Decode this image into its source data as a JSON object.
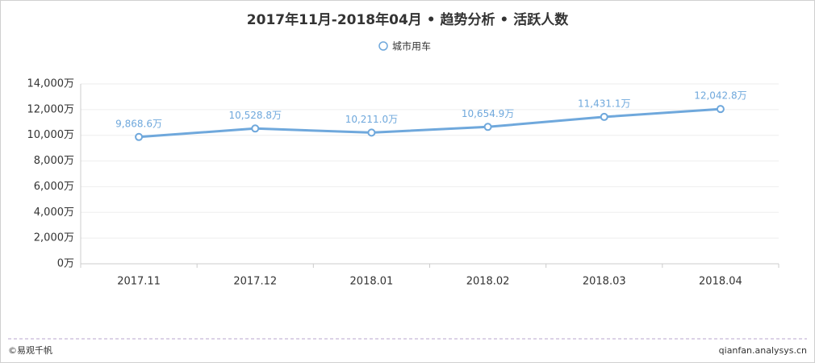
{
  "chart_data": {
    "type": "line",
    "title": "2017年11月-2018年04月 • 趋势分析 • 活跃人数",
    "categories": [
      "2017.11",
      "2017.12",
      "2018.01",
      "2018.02",
      "2018.03",
      "2018.04"
    ],
    "series": [
      {
        "name": "城市用车",
        "color": "#6fa8dc",
        "values": [
          9868.6,
          10528.8,
          10211.0,
          10654.9,
          11431.1,
          12042.8
        ],
        "value_labels": [
          "9,868.6万",
          "10,528.8万",
          "10,211.0万",
          "10,654.9万",
          "11,431.1万",
          "12,042.8万"
        ]
      }
    ],
    "ylim": [
      0,
      14000
    ],
    "yticks": [
      {
        "value": 0,
        "label": "0万"
      },
      {
        "value": 2000,
        "label": "2,000万"
      },
      {
        "value": 4000,
        "label": "4,000万"
      },
      {
        "value": 6000,
        "label": "6,000万"
      },
      {
        "value": 8000,
        "label": "8,000万"
      },
      {
        "value": 10000,
        "label": "10,000万"
      },
      {
        "value": 12000,
        "label": "12,000万"
      },
      {
        "value": 14000,
        "label": "14,000万"
      }
    ],
    "grid": true,
    "legend": "top",
    "source": "©易观千帆",
    "watermark": "qianfan.analysys.cn"
  }
}
